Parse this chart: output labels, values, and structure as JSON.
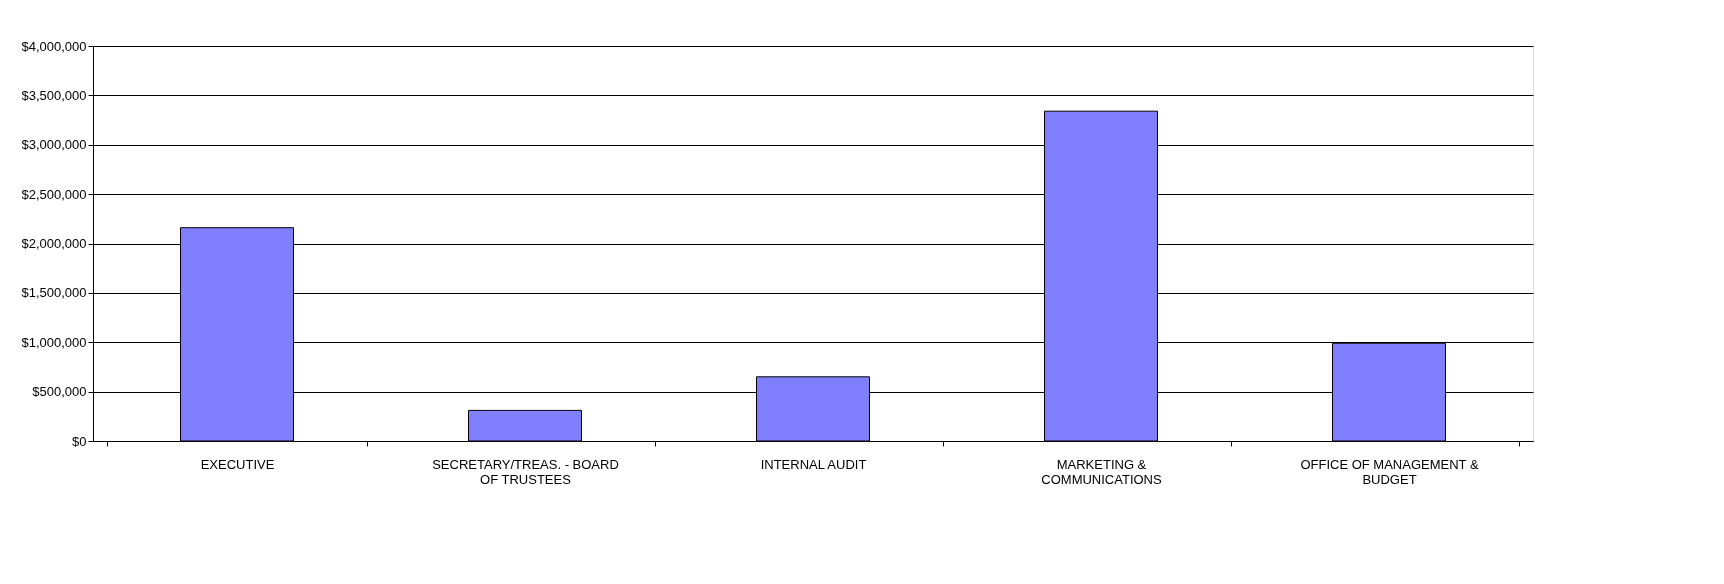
{
  "chart_data": {
    "type": "bar",
    "categories": [
      "EXECUTIVE",
      "SECRETARY/TREAS. - BOARD OF TRUSTEES",
      "INTERNAL AUDIT",
      "MARKETING & COMMUNICATIONS",
      "OFFICE OF MANAGEMENT & BUDGET"
    ],
    "values": [
      2160000,
      310000,
      650000,
      3340000,
      990000
    ],
    "color": "#8080ff",
    "ylim": [
      0,
      4000000
    ],
    "yticks": [
      {
        "value": 0,
        "label": "$0"
      },
      {
        "value": 500000,
        "label": "$500,000"
      },
      {
        "value": 1000000,
        "label": "$1,000,000"
      },
      {
        "value": 1500000,
        "label": "$1,500,000"
      },
      {
        "value": 2000000,
        "label": "$2,000,000"
      },
      {
        "value": 2500000,
        "label": "$2,500,000"
      },
      {
        "value": 3000000,
        "label": "$3,000,000"
      },
      {
        "value": 3500000,
        "label": "$3,500,000"
      },
      {
        "value": 4000000,
        "label": "$4,000,000"
      }
    ],
    "grid": "y"
  }
}
